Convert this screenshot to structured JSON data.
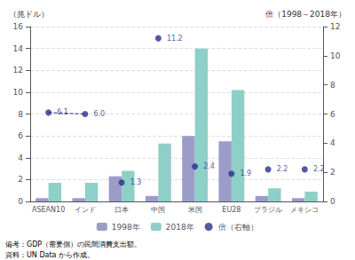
{
  "chart_data": {
    "type": "bar",
    "categories": [
      "ASEAN10",
      "インド",
      "日本",
      "中国",
      "米国",
      "EU28",
      "ブラジル",
      "メキシコ"
    ],
    "series": [
      {
        "name": "1998年",
        "color": "#9B9CC8",
        "values": [
          0.3,
          0.3,
          2.3,
          0.5,
          6.0,
          5.5,
          0.5,
          0.3
        ]
      },
      {
        "name": "2018年",
        "color": "#8ECFC7",
        "values": [
          1.7,
          1.7,
          2.8,
          5.3,
          14.0,
          10.2,
          1.2,
          0.9
        ]
      },
      {
        "name": "倍（右軸）",
        "type": "scatter",
        "axis": "y2",
        "color": "#2B2E8B",
        "marker": "circle",
        "values": [
          6.1,
          6.0,
          1.3,
          11.2,
          2.4,
          1.9,
          2.2,
          2.2
        ],
        "value_labels": [
          "6.1",
          "6.0",
          "1.3",
          "11.2",
          "2.4",
          "1.9",
          "2.2",
          "2.2"
        ],
        "data_labels": true
      },
      {
        "type": "line",
        "axis": "y2",
        "color": "#2B2E8B",
        "line_style": "dashed",
        "values": [
          6.1,
          6.0,
          null,
          null,
          null,
          null,
          null,
          null
        ]
      }
    ],
    "ylabel": "（兆ドル）",
    "y2label": "倍（1998～2018年）",
    "ylim": [
      0,
      16
    ],
    "yticks": [
      0,
      2,
      4,
      6,
      8,
      10,
      12,
      14,
      16
    ],
    "y2lim": [
      0,
      12
    ],
    "y2ticks": [
      0,
      2,
      4,
      6,
      8,
      10,
      12
    ],
    "grid": true,
    "legend": "bottom",
    "annotations": [
      "備考：GDP（需要側）の民間消費支出額。",
      "資料：UN Data から作成。"
    ]
  }
}
